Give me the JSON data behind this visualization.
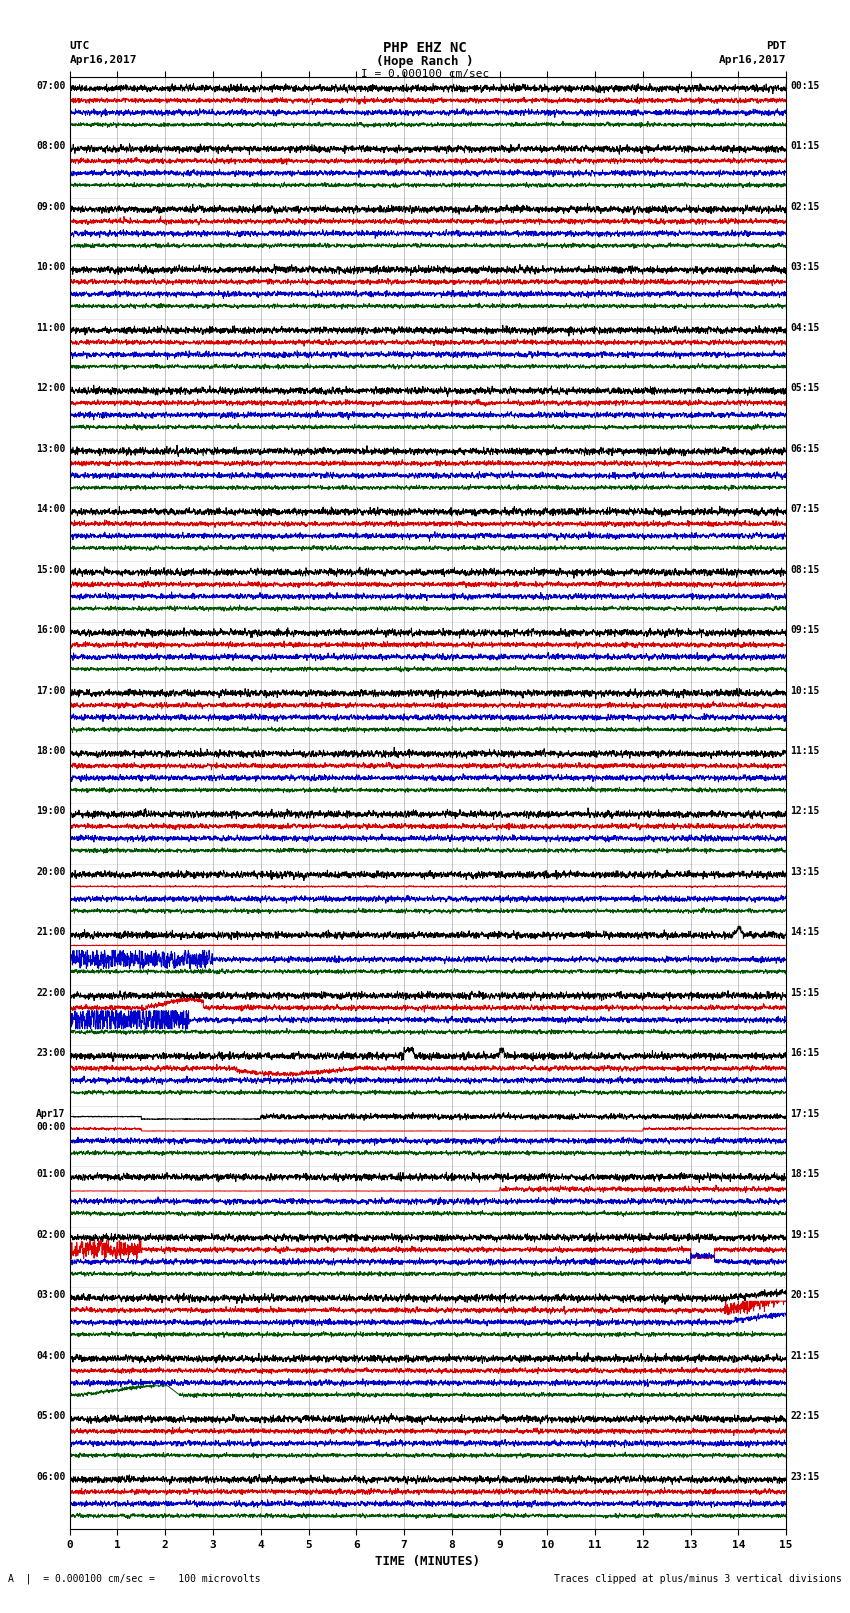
{
  "title_line1": "PHP EHZ NC",
  "title_line2": "(Hope Ranch )",
  "scale_label": "I = 0.000100 cm/sec",
  "left_label_line1": "UTC",
  "left_label_line2": "Apr16,2017",
  "right_label_line1": "PDT",
  "right_label_line2": "Apr16,2017",
  "bottom_left_label": "A  |  = 0.000100 cm/sec =    100 microvolts",
  "bottom_right_label": "Traces clipped at plus/minus 3 vertical divisions",
  "xlabel": "TIME (MINUTES)",
  "bg_color": "#ffffff",
  "num_rows": 24,
  "minutes_per_row": 15,
  "x_ticks": [
    0,
    1,
    2,
    3,
    4,
    5,
    6,
    7,
    8,
    9,
    10,
    11,
    12,
    13,
    14,
    15
  ],
  "utc_times": [
    "07:00",
    "08:00",
    "09:00",
    "10:00",
    "11:00",
    "12:00",
    "13:00",
    "14:00",
    "15:00",
    "16:00",
    "17:00",
    "18:00",
    "19:00",
    "20:00",
    "21:00",
    "22:00",
    "23:00",
    "Apr17\n00:00",
    "01:00",
    "02:00",
    "03:00",
    "04:00",
    "05:00",
    "06:00"
  ],
  "pdt_times": [
    "00:15",
    "01:15",
    "02:15",
    "03:15",
    "04:15",
    "05:15",
    "06:15",
    "07:15",
    "08:15",
    "09:15",
    "10:15",
    "11:15",
    "12:15",
    "13:15",
    "14:15",
    "15:15",
    "16:15",
    "17:15",
    "18:15",
    "19:15",
    "20:15",
    "21:15",
    "22:15",
    "23:15"
  ],
  "col_black": "#000000",
  "col_red": "#dd0000",
  "col_green": "#005500",
  "col_blue": "#0000cc",
  "col_grid": "#888888",
  "noise_amp_black": 0.35,
  "noise_amp_red": 0.25,
  "noise_amp_green": 0.2,
  "noise_amp_blue": 0.28,
  "lw": 0.7
}
